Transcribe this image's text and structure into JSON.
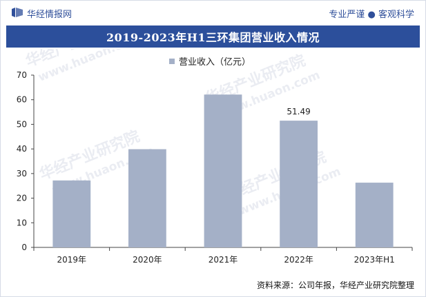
{
  "header": {
    "brand": "华经情报网",
    "slogan_left": "专业严谨",
    "slogan_right": "客观科学"
  },
  "chart_data": {
    "type": "bar",
    "title": "2019-2023年H1三环集团营业收入情况",
    "categories": [
      "2019年",
      "2020年",
      "2021年",
      "2022年",
      "2023年H1"
    ],
    "series": [
      {
        "name": "营业收入（亿元）",
        "values": [
          27.2,
          39.9,
          62.1,
          51.49,
          26.3
        ],
        "color": "#a4b0c7"
      }
    ],
    "data_labels": [
      "",
      "",
      "",
      "51.49",
      ""
    ],
    "ylim": [
      0,
      70
    ],
    "yticks": [
      0,
      10,
      20,
      30,
      40,
      50,
      60,
      70
    ],
    "grid": false,
    "legend_position": "top"
  },
  "footer": {
    "source": "资料来源：公司年报，华经产业研究院整理"
  },
  "watermark": {
    "text_cn": "华经产业研究院",
    "text_url": "www.huaon.com"
  }
}
